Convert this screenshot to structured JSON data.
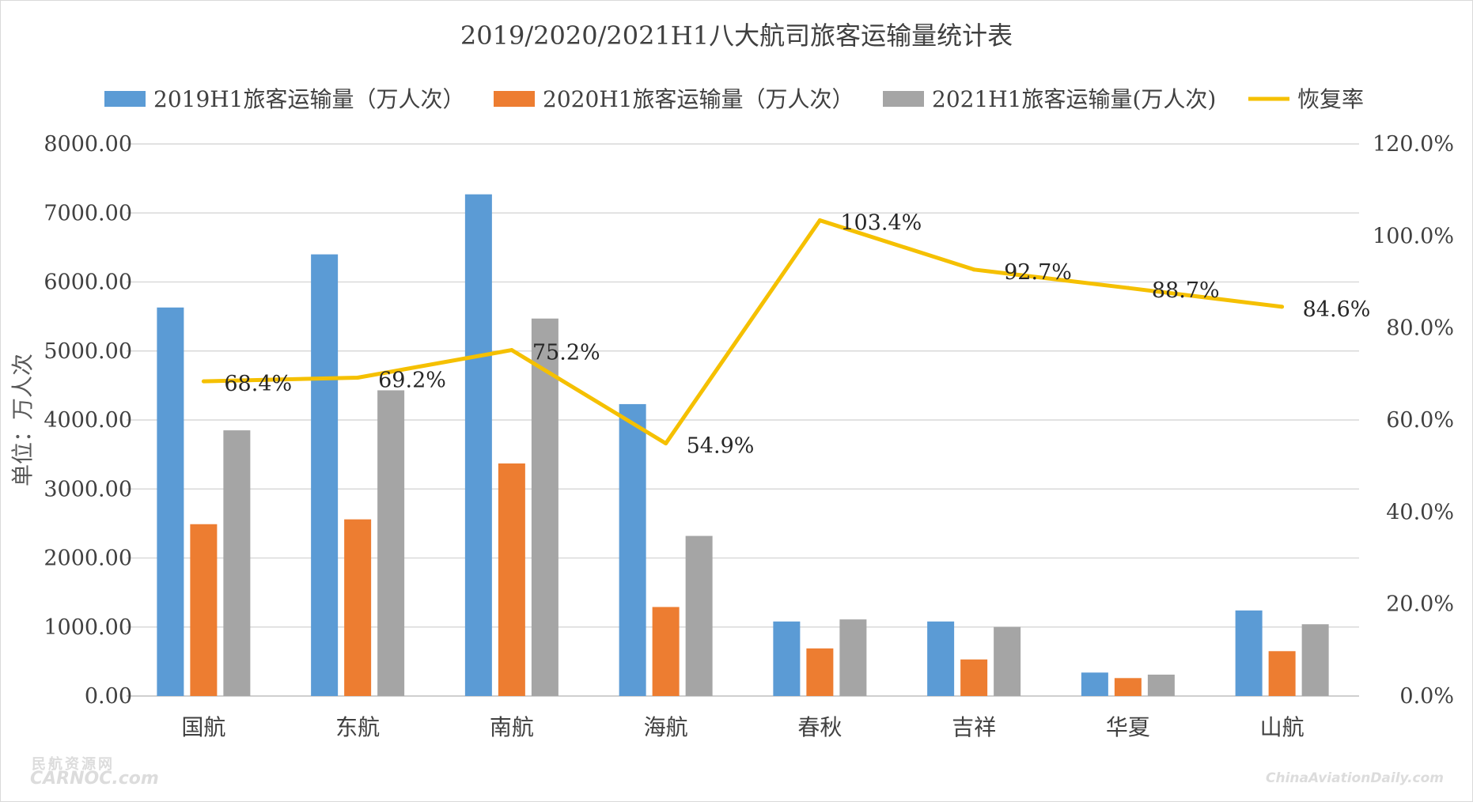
{
  "chart_data": {
    "type": "bar",
    "title": "2019/2020/2021H1八大航司旅客运输量统计表",
    "ylabel": "单位：万人次",
    "ylim": [
      0,
      8000
    ],
    "y_ticks": [
      "0.00",
      "1000.00",
      "2000.00",
      "3000.00",
      "4000.00",
      "5000.00",
      "6000.00",
      "7000.00",
      "8000.00"
    ],
    "y2lim": [
      0,
      120
    ],
    "y2_ticks": [
      "0.0%",
      "20.0%",
      "40.0%",
      "60.0%",
      "80.0%",
      "100.0%",
      "120.0%"
    ],
    "categories": [
      "国航",
      "东航",
      "南航",
      "海航",
      "春秋",
      "吉祥",
      "华夏",
      "山航"
    ],
    "series": [
      {
        "name": "2019H1旅客运输量（万人次）",
        "kind": "bar",
        "color": "#5b9bd5",
        "values": [
          5630,
          6400,
          7270,
          4230,
          1080,
          1080,
          340,
          1240
        ]
      },
      {
        "name": "2020H1旅客运输量（万人次）",
        "kind": "bar",
        "color": "#ed7d31",
        "values": [
          2490,
          2560,
          3370,
          1290,
          690,
          530,
          260,
          650
        ]
      },
      {
        "name": "2021H1旅客运输量(万人次)",
        "kind": "bar",
        "color": "#a5a5a5",
        "values": [
          3850,
          4430,
          5470,
          2320,
          1110,
          1000,
          310,
          1040
        ]
      },
      {
        "name": "恢复率",
        "kind": "line",
        "axis": "right",
        "color": "#f5c000",
        "values": [
          68.4,
          69.2,
          75.2,
          54.9,
          103.4,
          92.7,
          88.7,
          84.6
        ],
        "labels": [
          "68.4%",
          "69.2%",
          "75.2%",
          "54.9%",
          "103.4%",
          "92.7%",
          "88.7%",
          "84.6%"
        ]
      }
    ],
    "legend": "top",
    "grid": true
  },
  "watermarks": {
    "left_top": "民航资源网",
    "left_bottom": "CARNOC.com",
    "right": "ChinaAviationDaily.com"
  }
}
